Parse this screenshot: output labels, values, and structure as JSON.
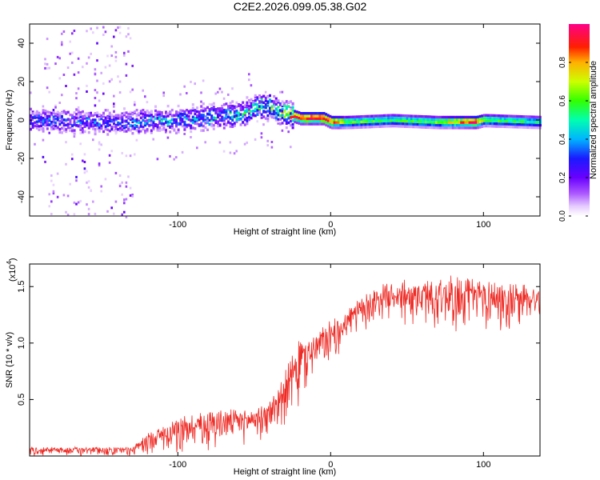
{
  "title": "C2E2.2026.099.05.38.G02",
  "colors": {
    "snr_line": "#ee2a24",
    "frame": "#000000"
  },
  "chart_data": [
    {
      "type": "heatmap",
      "xlabel": "Height of straight line (km)",
      "ylabel": "Frequency (Hz)",
      "xlim": [
        -197,
        137
      ],
      "ylim": [
        -50,
        50
      ],
      "xticks": [
        -100,
        0,
        100
      ],
      "xtick_labels": [
        "-100",
        "0",
        "100"
      ],
      "yticks": [
        -40,
        -20,
        0,
        20,
        40
      ],
      "ytick_labels": [
        "-40",
        "-20",
        "0",
        "20",
        "40"
      ],
      "colorbar": {
        "label": "Normalized spectral amplitude",
        "range": [
          0,
          1
        ],
        "ticks": [
          0.0,
          0.2,
          0.4,
          0.6,
          0.8
        ],
        "tick_labels": [
          "0.0",
          "0.2",
          "0.4",
          "0.6",
          "0.8"
        ],
        "colormap": "rainbow (white-violet-blue-cyan-green-yellow-red-magenta)"
      },
      "ridge": {
        "description": "spectral ridge frequency vs height",
        "x": [
          -197,
          -140,
          -100,
          -60,
          -45,
          -35,
          -20,
          -5,
          0,
          10,
          40,
          70,
          95,
          100,
          137
        ],
        "freq": [
          0,
          -1,
          0,
          3,
          8,
          5,
          1,
          1,
          -1,
          -1,
          0,
          -1,
          -1,
          0,
          -1
        ],
        "peak_amplitude": [
          0.35,
          0.35,
          0.45,
          0.5,
          0.55,
          0.7,
          0.95,
          0.98,
          0.9,
          0.6,
          0.55,
          0.6,
          0.97,
          0.6,
          0.5
        ]
      },
      "noise_region": {
        "x_range": [
          -190,
          -130
        ],
        "freq_range": [
          -50,
          50
        ],
        "amplitude": "low (<0.1)"
      }
    },
    {
      "type": "line",
      "name": "SNR",
      "xlabel": "Height of straight line (km)",
      "ylabel": "SNR (10 * v/v)",
      "y_scale_label": "(x10",
      "y_scale_exponent": "4",
      "xlim": [
        -197,
        137
      ],
      "ylim": [
        0,
        17000
      ],
      "xticks": [
        -100,
        0,
        100
      ],
      "xtick_labels": [
        "-100",
        "0",
        "100"
      ],
      "yticks": [
        5000,
        10000,
        15000
      ],
      "ytick_labels": [
        "0.5",
        "1.0",
        "1.5"
      ],
      "envelope": {
        "x": [
          -197,
          -130,
          -120,
          -100,
          -80,
          -60,
          -45,
          -35,
          -25,
          -20,
          -10,
          0,
          10,
          20,
          30,
          40,
          60,
          80,
          100,
          120,
          137
        ],
        "upper": [
          800,
          800,
          2000,
          3500,
          4000,
          4200,
          4500,
          6000,
          9000,
          10500,
          11000,
          12000,
          13000,
          14000,
          15000,
          15500,
          15800,
          16000,
          15600,
          15300,
          15200
        ],
        "lower": [
          0,
          0,
          100,
          300,
          500,
          700,
          900,
          1500,
          2500,
          4000,
          6000,
          8000,
          9500,
          10500,
          11500,
          12000,
          11000,
          10500,
          11000,
          10500,
          11500
        ]
      }
    }
  ]
}
